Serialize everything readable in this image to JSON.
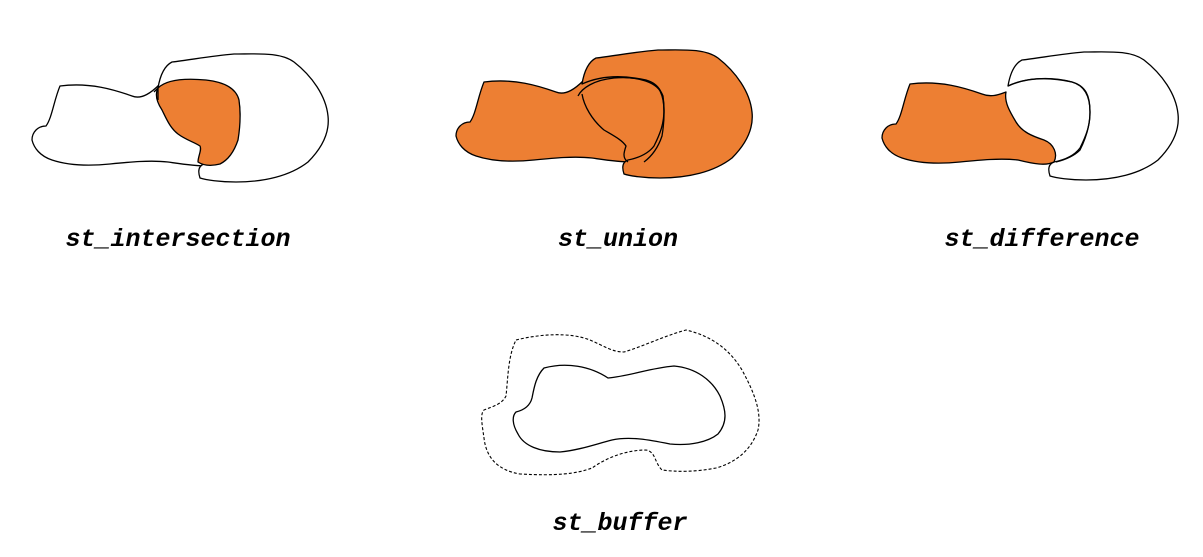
{
  "colors": {
    "fill": "#ED7F33",
    "stroke": "#000000",
    "background": "#FFFFFF"
  },
  "panels": [
    {
      "id": "intersection",
      "label": "st_intersection"
    },
    {
      "id": "union",
      "label": "st_union"
    },
    {
      "id": "difference",
      "label": "st_difference"
    },
    {
      "id": "buffer",
      "label": "st_buffer"
    }
  ]
}
